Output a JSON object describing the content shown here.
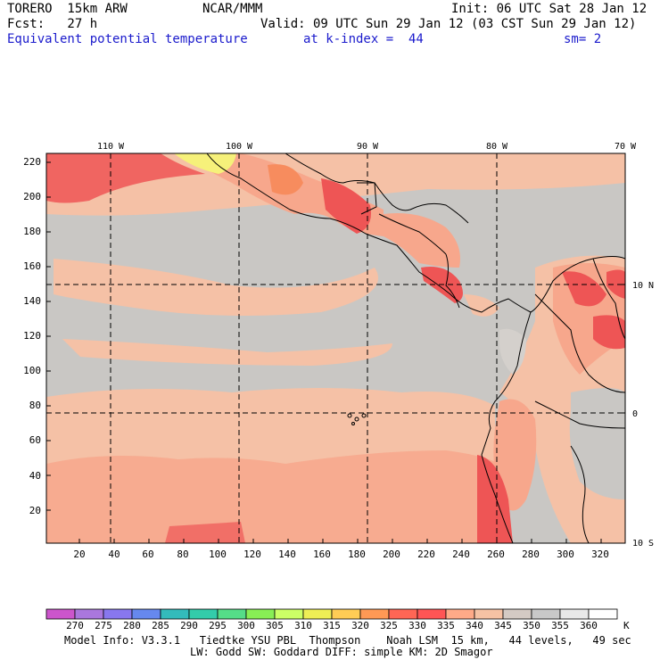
{
  "header": {
    "model": "TORERO  15km ARW",
    "org": "NCAR/MMM",
    "init": "Init: 06 UTC Sat 28 Jan 12",
    "fcst": "Fcst:   27 h",
    "valid": "Valid: 09 UTC Sun 29 Jan 12 (03 CST Sun 29 Jan 12)",
    "field": "Equivalent potential temperature",
    "level": "at k-index =  44",
    "smooth": "sm= 2"
  },
  "map": {
    "lon_labels": [
      "110 W",
      "100 W",
      "90 W",
      "80 W",
      "70 W"
    ],
    "lat_labels": [
      "10 N",
      "0",
      "10 S"
    ],
    "y_ticks": [
      "20",
      "40",
      "60",
      "80",
      "100",
      "120",
      "140",
      "160",
      "180",
      "200",
      "220"
    ],
    "x_ticks": [
      "20",
      "40",
      "60",
      "80",
      "100",
      "120",
      "140",
      "160",
      "180",
      "200",
      "220",
      "240",
      "260",
      "280",
      "300",
      "320"
    ]
  },
  "colorbar": {
    "labels": [
      "270",
      "275",
      "280",
      "285",
      "290",
      "295",
      "300",
      "305",
      "310",
      "315",
      "320",
      "325",
      "330",
      "335",
      "340",
      "345",
      "350",
      "355",
      "360"
    ],
    "unit": "K",
    "colors": [
      "#cc55cc",
      "#aa77dd",
      "#8877ee",
      "#6688ee",
      "#33bbbb",
      "#33ccaa",
      "#55dd88",
      "#88ee55",
      "#ccff66",
      "#eeee55",
      "#ffcc55",
      "#ff9955",
      "#ff6655",
      "#ff5555",
      "#ffaa88",
      "#f6c2a4",
      "#d4cac4",
      "#c8c8c8",
      "#e8e8e8",
      "#ffffff"
    ]
  },
  "colors": {
    "header_blue": "#1a1acc",
    "bg_gray": "#c9c7c4",
    "bg_peach": "#f5c1a6",
    "salmon": "#f7a78c",
    "red": "#ee5555",
    "orange": "#f78c5e",
    "yellow": "#f6f17a"
  },
  "footer": {
    "line1": "Model Info: V3.3.1   Tiedtke YSU PBL  Thompson    Noah LSM  15 km,   44 levels,   49 sec",
    "line2": "LW: Godd SW: Goddard DIFF: simple KM: 2D Smagor"
  }
}
